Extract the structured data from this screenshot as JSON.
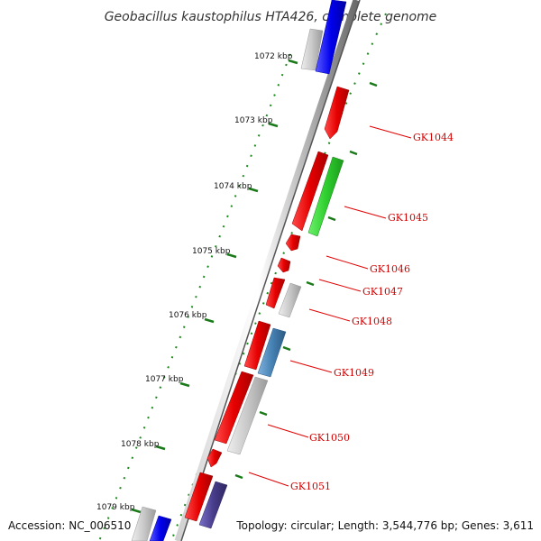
{
  "title": "Geobacillus kaustophilus HTA426, complete genome",
  "accession": "Accession: NC_006510",
  "topology": "Topology: circular; Length: 3,544,776 bp; Genes: 3,611",
  "ticks": [
    "1072 kbp",
    "1073 kbp",
    "1074 kbp",
    "1075 kbp",
    "1076 kbp",
    "1077 kbp",
    "1078 kbp",
    "1079 kbp"
  ],
  "genes": [
    "GK1044",
    "GK1045",
    "GK1046",
    "GK1047",
    "GK1048",
    "GK1049",
    "GK1050",
    "GK1051"
  ],
  "colors": {
    "cds_forward": "#e00000",
    "cds_reverse": "#00a000",
    "neutral": "#c0c0c0",
    "blue": "#0000e0",
    "steel": "#4682b4",
    "slate": "#483d8b",
    "tick": "#006400",
    "label_line": "#e00000"
  }
}
